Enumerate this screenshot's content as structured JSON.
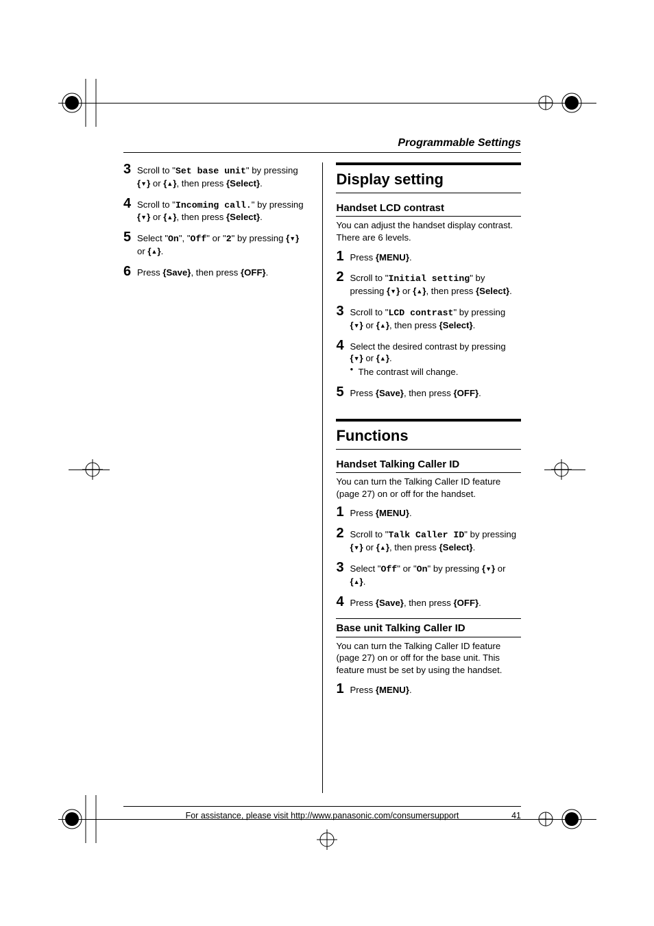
{
  "header": "Programmable Settings",
  "left": {
    "steps": [
      {
        "n": "3",
        "parts": [
          {
            "t": "Scroll to \""
          },
          {
            "t": "Set base unit",
            "cls": "mono"
          },
          {
            "t": "\" by pressing "
          },
          {
            "t": "{",
            "cls": "kb"
          },
          {
            "t": "▼",
            "cls": "arrow"
          },
          {
            "t": "}",
            "cls": "kb"
          },
          {
            "t": " or "
          },
          {
            "t": "{",
            "cls": "kb"
          },
          {
            "t": "▲",
            "cls": "arrow"
          },
          {
            "t": "}",
            "cls": "kb"
          },
          {
            "t": ", then press "
          },
          {
            "t": "{Select}",
            "cls": "kb"
          },
          {
            "t": "."
          }
        ]
      },
      {
        "n": "4",
        "parts": [
          {
            "t": "Scroll to \""
          },
          {
            "t": "Incoming call.",
            "cls": "mono"
          },
          {
            "t": "\" by pressing "
          },
          {
            "t": "{",
            "cls": "kb"
          },
          {
            "t": "▼",
            "cls": "arrow"
          },
          {
            "t": "}",
            "cls": "kb"
          },
          {
            "t": " or "
          },
          {
            "t": "{",
            "cls": "kb"
          },
          {
            "t": "▲",
            "cls": "arrow"
          },
          {
            "t": "}",
            "cls": "kb"
          },
          {
            "t": ", then press "
          },
          {
            "t": "{Select}",
            "cls": "kb"
          },
          {
            "t": "."
          }
        ]
      },
      {
        "n": "5",
        "parts": [
          {
            "t": "Select \""
          },
          {
            "t": "On",
            "cls": "mono"
          },
          {
            "t": "\", \""
          },
          {
            "t": "Off",
            "cls": "mono"
          },
          {
            "t": "\" or \""
          },
          {
            "t": "2",
            "cls": "mono"
          },
          {
            "t": "\" by pressing "
          },
          {
            "t": "{",
            "cls": "kb"
          },
          {
            "t": "▼",
            "cls": "arrow"
          },
          {
            "t": "}",
            "cls": "kb"
          },
          {
            "t": " or "
          },
          {
            "t": "{",
            "cls": "kb"
          },
          {
            "t": "▲",
            "cls": "arrow"
          },
          {
            "t": "}",
            "cls": "kb"
          },
          {
            "t": "."
          }
        ]
      },
      {
        "n": "6",
        "parts": [
          {
            "t": "Press "
          },
          {
            "t": "{Save}",
            "cls": "kb"
          },
          {
            "t": ", then press "
          },
          {
            "t": "{OFF}",
            "cls": "kb"
          },
          {
            "t": "."
          }
        ]
      }
    ]
  },
  "right": {
    "displayTitle": "Display setting",
    "lcdTitle": "Handset LCD contrast",
    "lcdIntro": "You can adjust the handset display contrast. There are 6 levels.",
    "lcdSteps": [
      {
        "n": "1",
        "parts": [
          {
            "t": "Press "
          },
          {
            "t": "{MENU}",
            "cls": "kb"
          },
          {
            "t": "."
          }
        ]
      },
      {
        "n": "2",
        "parts": [
          {
            "t": "Scroll to \""
          },
          {
            "t": "Initial setting",
            "cls": "mono"
          },
          {
            "t": "\" by pressing "
          },
          {
            "t": "{",
            "cls": "kb"
          },
          {
            "t": "▼",
            "cls": "arrow"
          },
          {
            "t": "}",
            "cls": "kb"
          },
          {
            "t": " or "
          },
          {
            "t": "{",
            "cls": "kb"
          },
          {
            "t": "▲",
            "cls": "arrow"
          },
          {
            "t": "}",
            "cls": "kb"
          },
          {
            "t": ", then press "
          },
          {
            "t": "{Select}",
            "cls": "kb"
          },
          {
            "t": "."
          }
        ]
      },
      {
        "n": "3",
        "parts": [
          {
            "t": "Scroll to \""
          },
          {
            "t": "LCD contrast",
            "cls": "mono"
          },
          {
            "t": "\" by pressing "
          },
          {
            "t": "{",
            "cls": "kb"
          },
          {
            "t": "▼",
            "cls": "arrow"
          },
          {
            "t": "}",
            "cls": "kb"
          },
          {
            "t": " or "
          },
          {
            "t": "{",
            "cls": "kb"
          },
          {
            "t": "▲",
            "cls": "arrow"
          },
          {
            "t": "}",
            "cls": "kb"
          },
          {
            "t": ", then press "
          },
          {
            "t": "{Select}",
            "cls": "kb"
          },
          {
            "t": "."
          }
        ]
      },
      {
        "n": "4",
        "parts": [
          {
            "t": "Select the desired contrast by pressing "
          },
          {
            "t": "{",
            "cls": "kb"
          },
          {
            "t": "▼",
            "cls": "arrow"
          },
          {
            "t": "}",
            "cls": "kb"
          },
          {
            "t": " or "
          },
          {
            "t": "{",
            "cls": "kb"
          },
          {
            "t": "▲",
            "cls": "arrow"
          },
          {
            "t": "}",
            "cls": "kb"
          },
          {
            "t": "."
          }
        ],
        "bullets": [
          [
            {
              "t": "The contrast will change."
            }
          ]
        ]
      },
      {
        "n": "5",
        "parts": [
          {
            "t": "Press "
          },
          {
            "t": "{Save}",
            "cls": "kb"
          },
          {
            "t": ", then press "
          },
          {
            "t": "{OFF}",
            "cls": "kb"
          },
          {
            "t": "."
          }
        ]
      }
    ],
    "functionsTitle": "Functions",
    "hsCallerTitle": "Handset Talking Caller ID",
    "hsCallerIntro": "You can turn the Talking Caller ID feature (page 27) on or off for the handset.",
    "hsCallerSteps": [
      {
        "n": "1",
        "parts": [
          {
            "t": "Press "
          },
          {
            "t": "{MENU}",
            "cls": "kb"
          },
          {
            "t": "."
          }
        ]
      },
      {
        "n": "2",
        "parts": [
          {
            "t": "Scroll to \""
          },
          {
            "t": "Talk Caller ID",
            "cls": "mono"
          },
          {
            "t": "\" by pressing "
          },
          {
            "t": "{",
            "cls": "kb"
          },
          {
            "t": "▼",
            "cls": "arrow"
          },
          {
            "t": "}",
            "cls": "kb"
          },
          {
            "t": " or "
          },
          {
            "t": "{",
            "cls": "kb"
          },
          {
            "t": "▲",
            "cls": "arrow"
          },
          {
            "t": "}",
            "cls": "kb"
          },
          {
            "t": ", then press "
          },
          {
            "t": "{Select}",
            "cls": "kb"
          },
          {
            "t": "."
          }
        ]
      },
      {
        "n": "3",
        "parts": [
          {
            "t": "Select \""
          },
          {
            "t": "Off",
            "cls": "mono"
          },
          {
            "t": "\" or \""
          },
          {
            "t": "On",
            "cls": "mono"
          },
          {
            "t": "\" by pressing "
          },
          {
            "t": "{",
            "cls": "kb"
          },
          {
            "t": "▼",
            "cls": "arrow"
          },
          {
            "t": "}",
            "cls": "kb"
          },
          {
            "t": " or "
          },
          {
            "t": "{",
            "cls": "kb"
          },
          {
            "t": "▲",
            "cls": "arrow"
          },
          {
            "t": "}",
            "cls": "kb"
          },
          {
            "t": "."
          }
        ]
      },
      {
        "n": "4",
        "parts": [
          {
            "t": "Press "
          },
          {
            "t": "{Save}",
            "cls": "kb"
          },
          {
            "t": ", then press "
          },
          {
            "t": "{OFF}",
            "cls": "kb"
          },
          {
            "t": "."
          }
        ]
      }
    ],
    "buCallerTitle": "Base unit Talking Caller ID",
    "buCallerIntro": "You can turn the Talking Caller ID feature (page 27) on or off for the base unit. This feature must be set by using the handset.",
    "buCallerSteps": [
      {
        "n": "1",
        "parts": [
          {
            "t": "Press "
          },
          {
            "t": "{MENU}",
            "cls": "kb"
          },
          {
            "t": "."
          }
        ]
      }
    ]
  },
  "footer": {
    "text": "For assistance, please visit http://www.panasonic.com/consumersupport",
    "page": "41"
  }
}
